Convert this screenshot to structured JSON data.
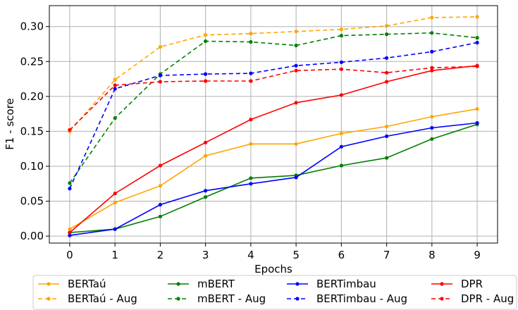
{
  "chart_data": {
    "type": "line",
    "title": "",
    "xlabel": "Epochs",
    "ylabel": "F1 - score",
    "x": [
      0,
      1,
      2,
      3,
      4,
      5,
      6,
      7,
      8,
      9
    ],
    "xlim": [
      -0.45,
      9.45
    ],
    "ylim": [
      -0.01,
      0.33
    ],
    "yticks": [
      0.0,
      0.05,
      0.1,
      0.15,
      0.2,
      0.25,
      0.3
    ],
    "ytick_labels": [
      "0.00",
      "0.05",
      "0.10",
      "0.15",
      "0.20",
      "0.25",
      "0.30"
    ],
    "xtick_labels": [
      "0",
      "1",
      "2",
      "3",
      "4",
      "5",
      "6",
      "7",
      "8",
      "9"
    ],
    "grid": true,
    "legend_placement": "bottom",
    "series": [
      {
        "name": "BERTaú",
        "color": "#FFA500",
        "dashed": false,
        "values": [
          0.01,
          0.048,
          0.072,
          0.115,
          0.132,
          0.132,
          0.147,
          0.157,
          0.171,
          0.182
        ]
      },
      {
        "name": "BERTaú - Aug",
        "color": "#FFA500",
        "dashed": true,
        "values": [
          0.15,
          0.224,
          0.271,
          0.288,
          0.29,
          0.293,
          0.296,
          0.301,
          0.313,
          0.314
        ]
      },
      {
        "name": "mBERT",
        "color": "#008000",
        "dashed": false,
        "values": [
          0.005,
          0.01,
          0.028,
          0.056,
          0.083,
          0.087,
          0.101,
          0.112,
          0.139,
          0.16
        ]
      },
      {
        "name": "mBERT - Aug",
        "color": "#008000",
        "dashed": true,
        "values": [
          0.076,
          0.169,
          0.232,
          0.279,
          0.278,
          0.273,
          0.287,
          0.289,
          0.291,
          0.284
        ]
      },
      {
        "name": "BERTimbau",
        "color": "#0000FF",
        "dashed": false,
        "values": [
          0.001,
          0.01,
          0.045,
          0.065,
          0.075,
          0.084,
          0.128,
          0.143,
          0.155,
          0.162
        ]
      },
      {
        "name": "BERTimbau - Aug",
        "color": "#0000FF",
        "dashed": true,
        "values": [
          0.068,
          0.211,
          0.23,
          0.232,
          0.233,
          0.244,
          0.249,
          0.255,
          0.264,
          0.277
        ]
      },
      {
        "name": "DPR",
        "color": "#FF0000",
        "dashed": false,
        "values": [
          0.005,
          0.061,
          0.101,
          0.134,
          0.167,
          0.191,
          0.202,
          0.221,
          0.237,
          0.244
        ]
      },
      {
        "name": "DPR - Aug",
        "color": "#FF0000",
        "dashed": true,
        "values": [
          0.152,
          0.216,
          0.221,
          0.222,
          0.222,
          0.237,
          0.239,
          0.234,
          0.241,
          0.243
        ]
      }
    ]
  }
}
